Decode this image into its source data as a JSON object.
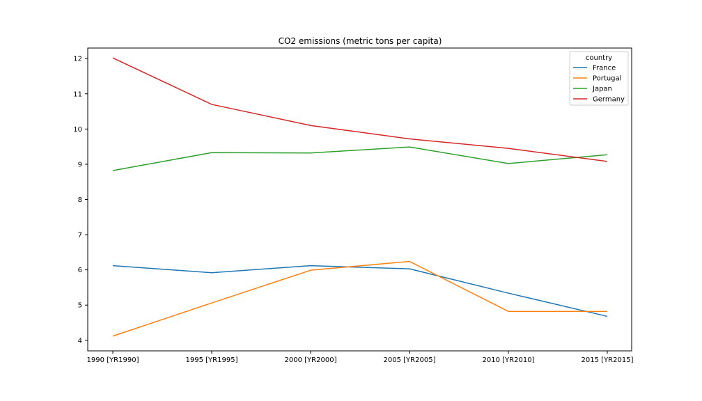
{
  "chart_data": {
    "type": "line",
    "title": "CO2 emissions (metric tons per capita)",
    "xlabel": "",
    "ylabel": "",
    "categories": [
      "1990 [YR1990]",
      "1995 [YR1995]",
      "2000 [YR2000]",
      "2005 [YR2005]",
      "2010 [YR2010]",
      "2015 [YR2015]"
    ],
    "ylim": [
      3.7,
      12.3
    ],
    "yticks": [
      4,
      5,
      6,
      7,
      8,
      9,
      10,
      11,
      12
    ],
    "grid": false,
    "legend": {
      "title": "country",
      "placement": "top-right"
    },
    "series": [
      {
        "name": "France",
        "color": "#1f77b4",
        "values": [
          6.12,
          5.92,
          6.12,
          6.03,
          5.34,
          4.68
        ]
      },
      {
        "name": "Portugal",
        "color": "#ff7f0e",
        "values": [
          4.12,
          5.06,
          5.99,
          6.24,
          4.82,
          4.82
        ]
      },
      {
        "name": "Japan",
        "color": "#2ca02c",
        "values": [
          8.82,
          9.33,
          9.32,
          9.49,
          9.02,
          9.27
        ]
      },
      {
        "name": "Germany",
        "color": "#d62728",
        "values": [
          12.02,
          10.7,
          10.1,
          9.72,
          9.45,
          9.08
        ]
      }
    ]
  }
}
